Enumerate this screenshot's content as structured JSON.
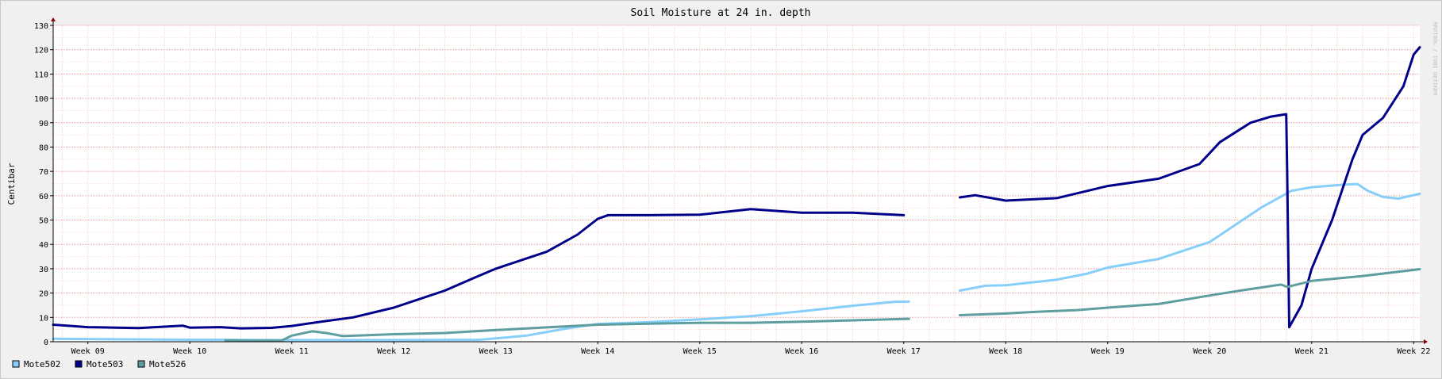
{
  "chart_data": {
    "type": "line",
    "title": "Soil Moisture at 24 in. depth",
    "ylabel": "Centibar",
    "xlabel": "",
    "ylim": [
      0,
      130
    ],
    "xlim": [
      8.66,
      22.06
    ],
    "y_ticks": [
      0,
      10,
      20,
      30,
      40,
      50,
      60,
      70,
      80,
      90,
      100,
      110,
      120,
      130
    ],
    "x_ticks": [
      {
        "label": "Week 09",
        "x": 9
      },
      {
        "label": "Week 10",
        "x": 10
      },
      {
        "label": "Week 11",
        "x": 11
      },
      {
        "label": "Week 12",
        "x": 12
      },
      {
        "label": "Week 13",
        "x": 13
      },
      {
        "label": "Week 14",
        "x": 14
      },
      {
        "label": "Week 15",
        "x": 15
      },
      {
        "label": "Week 16",
        "x": 16
      },
      {
        "label": "Week 17",
        "x": 17
      },
      {
        "label": "Week 18",
        "x": 18
      },
      {
        "label": "Week 19",
        "x": 19
      },
      {
        "label": "Week 20",
        "x": 20
      },
      {
        "label": "Week 21",
        "x": 21
      },
      {
        "label": "Week 22",
        "x": 22
      }
    ],
    "grid": true,
    "legend_position": "bottom-left",
    "watermark": "RRDTOOL / TOBI OETIKER",
    "series": [
      {
        "name": "Mote502",
        "color": "#87cefa",
        "segments": [
          [
            [
              8.66,
              1.2
            ],
            [
              9.0,
              1.1
            ],
            [
              10.0,
              0.8
            ],
            [
              11.0,
              0.7
            ],
            [
              12.0,
              0.7
            ],
            [
              12.85,
              0.8
            ],
            [
              13.3,
              2.5
            ],
            [
              13.7,
              5.5
            ],
            [
              14.0,
              7.3
            ],
            [
              14.5,
              8.0
            ],
            [
              15.0,
              9.2
            ],
            [
              15.5,
              10.5
            ],
            [
              16.0,
              12.5
            ],
            [
              16.5,
              14.8
            ],
            [
              16.9,
              16.4
            ],
            [
              17.05,
              16.5
            ]
          ],
          [
            [
              17.55,
              21.0
            ],
            [
              17.8,
              23.0
            ],
            [
              18.0,
              23.2
            ],
            [
              18.5,
              25.5
            ],
            [
              18.8,
              28.0
            ],
            [
              19.0,
              30.5
            ],
            [
              19.5,
              34.0
            ],
            [
              20.0,
              41.0
            ],
            [
              20.5,
              55.0
            ],
            [
              20.8,
              62.0
            ],
            [
              21.0,
              63.5
            ],
            [
              21.3,
              64.5
            ],
            [
              21.45,
              64.8
            ],
            [
              21.55,
              62.0
            ],
            [
              21.7,
              59.5
            ],
            [
              21.85,
              58.8
            ],
            [
              22.06,
              60.8
            ]
          ]
        ]
      },
      {
        "name": "Mote503",
        "color": "#00008b",
        "segments": [
          [
            [
              8.66,
              7.0
            ],
            [
              9.0,
              6.0
            ],
            [
              9.5,
              5.6
            ],
            [
              9.93,
              6.6
            ],
            [
              10.0,
              5.8
            ],
            [
              10.3,
              6.0
            ],
            [
              10.5,
              5.5
            ],
            [
              10.8,
              5.7
            ],
            [
              11.0,
              6.5
            ],
            [
              11.3,
              8.3
            ],
            [
              11.6,
              10.0
            ],
            [
              12.0,
              14.0
            ],
            [
              12.5,
              21.0
            ],
            [
              12.8,
              26.5
            ],
            [
              13.0,
              30.0
            ],
            [
              13.5,
              37.0
            ],
            [
              13.8,
              44.0
            ],
            [
              14.0,
              50.5
            ],
            [
              14.1,
              52.0
            ],
            [
              14.5,
              52.0
            ],
            [
              15.0,
              52.2
            ],
            [
              15.5,
              54.5
            ],
            [
              16.0,
              53.0
            ],
            [
              16.5,
              53.0
            ],
            [
              17.0,
              52.0
            ]
          ],
          [
            [
              17.55,
              59.3
            ],
            [
              17.7,
              60.2
            ],
            [
              18.0,
              58.0
            ],
            [
              18.5,
              59.0
            ],
            [
              18.7,
              61.0
            ],
            [
              19.0,
              64.0
            ],
            [
              19.5,
              67.0
            ],
            [
              19.9,
              73.0
            ],
            [
              20.1,
              82.0
            ],
            [
              20.4,
              90.0
            ],
            [
              20.6,
              92.5
            ],
            [
              20.75,
              93.5
            ],
            [
              20.76,
              70.0
            ],
            [
              20.78,
              6.0
            ],
            [
              20.9,
              15.0
            ],
            [
              21.0,
              30.0
            ],
            [
              21.2,
              50.0
            ],
            [
              21.4,
              75.0
            ],
            [
              21.5,
              85.0
            ],
            [
              21.7,
              92.0
            ],
            [
              21.9,
              105.0
            ],
            [
              22.0,
              118.0
            ],
            [
              22.06,
              121.0
            ]
          ]
        ]
      },
      {
        "name": "Mote526",
        "color": "#5f9ea0",
        "segments": [
          [
            [
              10.35,
              0.6
            ],
            [
              10.6,
              0.4
            ],
            [
              10.9,
              0.5
            ],
            [
              11.0,
              2.5
            ],
            [
              11.2,
              4.3
            ],
            [
              11.35,
              3.5
            ],
            [
              11.5,
              2.3
            ],
            [
              12.0,
              3.1
            ],
            [
              12.5,
              3.6
            ],
            [
              13.0,
              4.8
            ],
            [
              13.5,
              5.9
            ],
            [
              14.0,
              7.0
            ],
            [
              14.5,
              7.4
            ],
            [
              15.0,
              7.8
            ],
            [
              15.5,
              7.8
            ],
            [
              16.0,
              8.2
            ],
            [
              16.5,
              8.8
            ],
            [
              17.05,
              9.4
            ]
          ],
          [
            [
              17.55,
              10.9
            ],
            [
              18.0,
              11.6
            ],
            [
              18.3,
              12.3
            ],
            [
              18.7,
              13.0
            ],
            [
              19.0,
              14.0
            ],
            [
              19.5,
              15.5
            ],
            [
              20.0,
              19.0
            ],
            [
              20.3,
              21.0
            ],
            [
              20.7,
              23.5
            ],
            [
              20.76,
              22.5
            ],
            [
              21.0,
              25.0
            ],
            [
              21.5,
              27.0
            ],
            [
              22.06,
              29.8
            ]
          ]
        ]
      }
    ]
  }
}
